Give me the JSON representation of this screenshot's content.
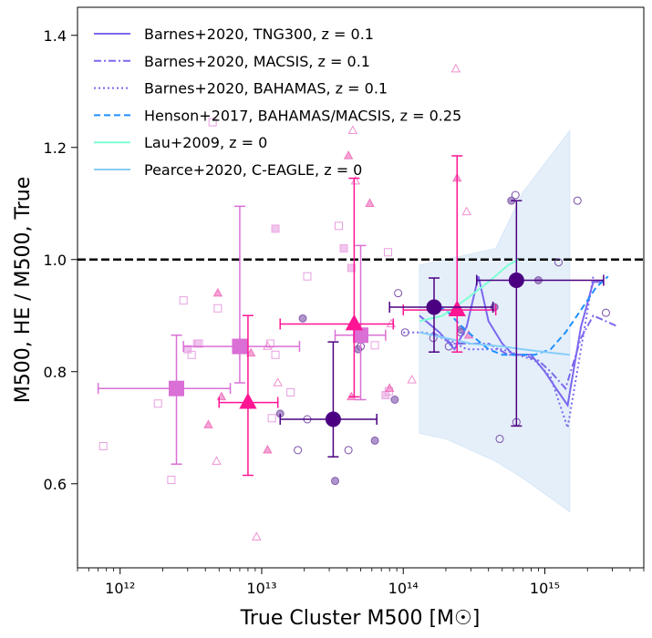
{
  "chart_data": {
    "type": "scatter",
    "xscale": "log",
    "xlim": [
      500000000000.0,
      5000000000000000.0
    ],
    "ylim": [
      0.45,
      1.45
    ],
    "xlabel": "True Cluster M500 [M☉]",
    "ylabel": "M500, HE / M500, True",
    "xticks": [
      {
        "value": 1000000000000.0,
        "label": "10¹²"
      },
      {
        "value": 10000000000000.0,
        "label": "10¹³"
      },
      {
        "value": 100000000000000.0,
        "label": "10¹⁴"
      },
      {
        "value": 1000000000000000.0,
        "label": "10¹⁵"
      }
    ],
    "yticks": [
      {
        "value": 0.6,
        "label": "0.6"
      },
      {
        "value": 0.8,
        "label": "0.8"
      },
      {
        "value": 1.0,
        "label": "1.0"
      },
      {
        "value": 1.2,
        "label": "1.2"
      },
      {
        "value": 1.4,
        "label": "1.4"
      }
    ],
    "reference_line": {
      "y": 1.0,
      "style": "dashed",
      "color": "#000000"
    },
    "legend": {
      "position": "top-left",
      "entries": [
        {
          "label": "Barnes+2020, TNG300, z = 0.1",
          "color": "#7b68ee",
          "dash": "solid"
        },
        {
          "label": "Barnes+2020, MACSIS, z = 0.1",
          "color": "#7b68ee",
          "dash": "dashdot"
        },
        {
          "label": "Barnes+2020, BAHAMAS, z = 0.1",
          "color": "#7b68ee",
          "dash": "dotted"
        },
        {
          "label": "Henson+2017, BAHAMAS/MACSIS, z = 0.25",
          "color": "#1e90ff",
          "dash": "dashed"
        },
        {
          "label": "Lau+2009, z = 0",
          "color": "#7fffd4",
          "dash": "solid"
        },
        {
          "label": "Pearce+2020, C-EAGLE, z = 0",
          "color": "#87cefa",
          "dash": "solid"
        }
      ]
    },
    "shaded_band": {
      "color": "#cce0f5",
      "x": [
        130000000000000.0,
        200000000000000.0,
        450000000000000.0,
        700000000000000.0,
        1500000000000000.0
      ],
      "upper": [
        0.99,
        1.0,
        1.02,
        1.12,
        1.23
      ],
      "lower": [
        0.69,
        0.68,
        0.64,
        0.61,
        0.55
      ]
    },
    "lines": [
      {
        "name": "Barnes+2020, TNG300",
        "color": "#7b68ee",
        "dash": "solid",
        "x": [
          130000000000000.0,
          180000000000000.0,
          230000000000000.0,
          280000000000000.0,
          340000000000000.0,
          400000000000000.0,
          500000000000000.0,
          600000000000000.0,
          800000000000000.0,
          1000000000000000.0,
          1200000000000000.0,
          1450000000000000.0,
          1800000000000000.0,
          2200000000000000.0,
          2600000000000000.0
        ],
        "y": [
          0.9,
          0.87,
          0.84,
          0.88,
          0.97,
          0.89,
          0.85,
          0.83,
          0.83,
          0.8,
          0.77,
          0.74,
          0.88,
          0.96,
          0.96
        ]
      },
      {
        "name": "Barnes+2020, MACSIS",
        "color": "#7b68ee",
        "dash": "dashdot",
        "x": [
          160000000000000.0,
          220000000000000.0,
          300000000000000.0,
          400000000000000.0,
          550000000000000.0,
          700000000000000.0,
          900000000000000.0,
          1100000000000000.0,
          1400000000000000.0,
          1800000000000000.0,
          2200000000000000.0,
          2700000000000000.0,
          3300000000000000.0
        ],
        "y": [
          0.87,
          0.85,
          0.85,
          0.85,
          0.83,
          0.83,
          0.82,
          0.8,
          0.77,
          0.86,
          0.9,
          0.89,
          0.88
        ]
      },
      {
        "name": "Barnes+2020, BAHAMAS",
        "color": "#7b68ee",
        "dash": "dotted",
        "x": [
          100000000000000.0,
          140000000000000.0,
          200000000000000.0,
          280000000000000.0,
          380000000000000.0,
          500000000000000.0,
          650000000000000.0,
          850000000000000.0,
          1100000000000000.0,
          1450000000000000.0,
          1800000000000000.0,
          2200000000000000.0
        ],
        "y": [
          0.87,
          0.87,
          0.86,
          0.84,
          0.84,
          0.84,
          0.83,
          0.82,
          0.79,
          0.7,
          0.84,
          0.97
        ]
      },
      {
        "name": "Henson+2017, BAHAMAS/MACSIS",
        "color": "#1e90ff",
        "dash": "dashed",
        "x": [
          150000000000000.0,
          200000000000000.0,
          260000000000000.0,
          320000000000000.0,
          400000000000000.0,
          500000000000000.0,
          650000000000000.0,
          850000000000000.0,
          1100000000000000.0,
          1400000000000000.0,
          1800000000000000.0,
          2300000000000000.0,
          2800000000000000.0
        ],
        "y": [
          0.92,
          0.91,
          0.88,
          0.86,
          0.84,
          0.83,
          0.83,
          0.83,
          0.84,
          0.87,
          0.91,
          0.95,
          0.97
        ]
      },
      {
        "name": "Lau+2009",
        "color": "#7fffd4",
        "dash": "solid",
        "x": [
          130000000000000.0,
          190000000000000.0,
          280000000000000.0,
          400000000000000.0,
          550000000000000.0,
          650000000000000.0
        ],
        "y": [
          0.89,
          0.9,
          0.93,
          0.96,
          0.99,
          1.0
        ]
      },
      {
        "name": "Pearce+2020, C-EAGLE",
        "color": "#87cefa",
        "dash": "solid",
        "x": [
          130000000000000.0,
          200000000000000.0,
          300000000000000.0,
          500000000000000.0,
          700000000000000.0,
          1000000000000000.0,
          1500000000000000.0
        ],
        "y": [
          0.87,
          0.86,
          0.85,
          0.845,
          0.84,
          0.835,
          0.83
        ]
      }
    ],
    "scatter_sets": [
      {
        "name": "open circles",
        "marker": "circle",
        "filled": false,
        "color": "#7a4fa8",
        "x": [
          21000000000000.0,
          18000000000000.0,
          41000000000000.0,
          92000000000000.0,
          103000000000000.0,
          163000000000000.0,
          210000000000000.0,
          255000000000000.0,
          480000000000000.0,
          620000000000000.0,
          1700000000000000.0,
          2700000000000000.0,
          630000000000000.0,
          1250000000000000.0,
          50000000000000.0
        ],
        "y": [
          0.715,
          0.66,
          0.66,
          0.94,
          0.87,
          0.86,
          0.845,
          0.87,
          0.68,
          1.115,
          1.105,
          0.905,
          0.71,
          0.995,
          0.845
        ]
      },
      {
        "name": "filled circles",
        "marker": "circle",
        "filled": true,
        "color": "#7a4fa8",
        "x": [
          13500000000000.0,
          19500000000000.0,
          33000000000000.0,
          48000000000000.0,
          63000000000000.0,
          87000000000000.0,
          255000000000000.0,
          440000000000000.0,
          580000000000000.0,
          900000000000000.0
        ],
        "y": [
          0.725,
          0.895,
          0.605,
          0.84,
          0.677,
          0.75,
          0.875,
          0.915,
          1.105,
          0.963
        ]
      },
      {
        "name": "open squares",
        "marker": "square",
        "filled": false,
        "color": "#e8a0e0",
        "x": [
          760000000000.0,
          1850000000000.0,
          2300000000000.0,
          2800000000000.0,
          3200000000000.0,
          3600000000000.0,
          4500000000000.0,
          4900000000000.0,
          11800000000000.0,
          12500000000000.0,
          11500000000000.0,
          16000000000000.0,
          35000000000000.0,
          21000000000000.0,
          63000000000000.0,
          78000000000000.0,
          79000000000000.0
        ],
        "y": [
          0.667,
          0.743,
          0.607,
          0.927,
          0.83,
          0.85,
          1.245,
          0.913,
          0.717,
          0.83,
          0.85,
          0.763,
          1.06,
          0.97,
          0.847,
          1.013,
          0.765
        ]
      },
      {
        "name": "filled squares",
        "marker": "square",
        "filled": true,
        "color": "#e8a0e0",
        "x": [
          3000000000000.0,
          3500000000000.0,
          12500000000000.0,
          38000000000000.0,
          43000000000000.0,
          75000000000000.0
        ],
        "y": [
          0.84,
          0.85,
          1.055,
          1.02,
          0.985,
          0.758
        ]
      },
      {
        "name": "open triangles",
        "marker": "triangle",
        "filled": false,
        "color": "#f090d0",
        "x": [
          4800000000000.0,
          9200000000000.0,
          11000000000000.0,
          13000000000000.0,
          46000000000000.0,
          82000000000000.0,
          115000000000000.0,
          280000000000000.0,
          235000000000000.0,
          44000000000000.0
        ],
        "y": [
          0.64,
          0.505,
          0.845,
          0.78,
          1.14,
          0.885,
          0.785,
          1.085,
          1.34,
          1.23
        ]
      },
      {
        "name": "filled triangles",
        "marker": "triangle",
        "filled": true,
        "color": "#ee66b8",
        "x": [
          4200000000000.0,
          4900000000000.0,
          5200000000000.0,
          8400000000000.0,
          11000000000000.0,
          41000000000000.0,
          43000000000000.0,
          58000000000000.0,
          80000000000000.0,
          240000000000000.0,
          290000000000000.0
        ],
        "y": [
          0.705,
          0.94,
          0.755,
          0.833,
          0.66,
          1.185,
          0.755,
          1.1,
          0.77,
          1.145,
          0.865
        ]
      }
    ],
    "binned_points": [
      {
        "marker": "square",
        "color": "#da70d6",
        "points": [
          {
            "x": 2500000000000.0,
            "y": 0.77,
            "xerr": [
              700000000000.0,
              6000000000000.0
            ],
            "yerr": [
              0.635,
              0.865
            ]
          },
          {
            "x": 7000000000000.0,
            "y": 0.845,
            "xerr": [
              2800000000000.0,
              18500000000000.0
            ],
            "yerr": [
              0.78,
              1.095
            ]
          },
          {
            "x": 50000000000000.0,
            "y": 0.865,
            "xerr": [
              33000000000000.0,
              75000000000000.0
            ],
            "yerr": [
              0.75,
              1.025
            ]
          }
        ]
      },
      {
        "marker": "triangle",
        "color": "#ff1493",
        "points": [
          {
            "x": 8000000000000.0,
            "y": 0.745,
            "xerr": [
              5000000000000.0,
              13000000000000.0
            ],
            "yerr": [
              0.615,
              0.9
            ]
          },
          {
            "x": 45000000000000.0,
            "y": 0.885,
            "xerr": [
              13500000000000.0,
              85000000000000.0
            ],
            "yerr": [
              0.755,
              1.145
            ]
          },
          {
            "x": 240000000000000.0,
            "y": 0.91,
            "xerr": [
              100000000000000.0,
              450000000000000.0
            ],
            "yerr": [
              0.835,
              1.185
            ]
          }
        ]
      },
      {
        "marker": "circle",
        "color": "#4b0082",
        "points": [
          {
            "x": 32000000000000.0,
            "y": 0.715,
            "xerr": [
              13500000000000.0,
              65000000000000.0
            ],
            "yerr": [
              0.648,
              0.853
            ]
          },
          {
            "x": 165000000000000.0,
            "y": 0.915,
            "xerr": [
              80000000000000.0,
              430000000000000.0
            ],
            "yerr": [
              0.835,
              0.967
            ]
          },
          {
            "x": 630000000000000.0,
            "y": 0.963,
            "xerr": [
              330000000000000.0,
              2600000000000000.0
            ],
            "yerr": [
              0.703,
              1.105
            ]
          }
        ]
      }
    ]
  }
}
